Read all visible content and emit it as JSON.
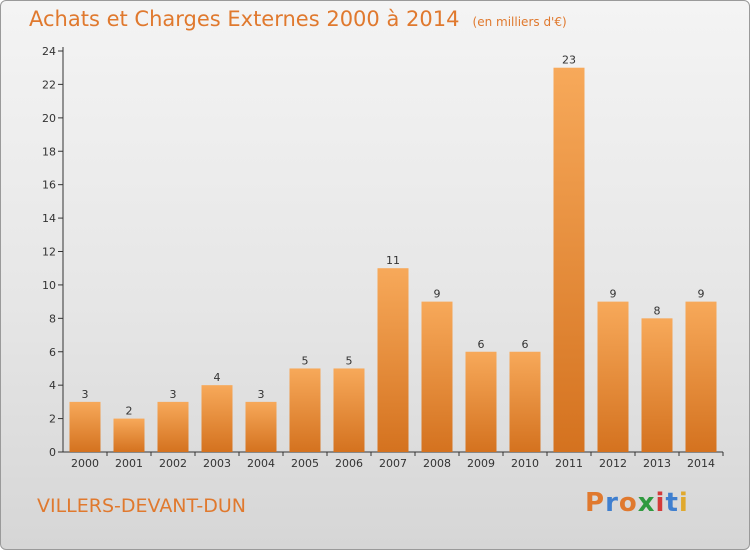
{
  "title": "Achats et Charges Externes 2000 à 2014",
  "unit_note": "(en milliers d'€)",
  "commune": "VILLERS-DEVANT-DUN",
  "logo": {
    "text": "Proxiti",
    "colors": [
      "#e0792e",
      "#3f7fcf",
      "#e0792e",
      "#2f9a3f",
      "#d43a3a",
      "#3f7fcf",
      "#e0a92e"
    ]
  },
  "colors": {
    "bar_top": "#f7a95a",
    "bar_bottom": "#d4721f",
    "text": "#e0792e",
    "axis": "#333333"
  },
  "chart_data": {
    "type": "bar",
    "categories": [
      "2000",
      "2001",
      "2002",
      "2003",
      "2004",
      "2005",
      "2006",
      "2007",
      "2008",
      "2009",
      "2010",
      "2011",
      "2012",
      "2013",
      "2014"
    ],
    "values": [
      3,
      2,
      3,
      4,
      3,
      5,
      5,
      11,
      9,
      6,
      6,
      23,
      9,
      8,
      9
    ],
    "ylim": [
      0,
      24
    ],
    "yticks": [
      0,
      2,
      4,
      6,
      8,
      10,
      12,
      14,
      16,
      18,
      20,
      22,
      24
    ],
    "grid": false,
    "data_labels": true
  }
}
